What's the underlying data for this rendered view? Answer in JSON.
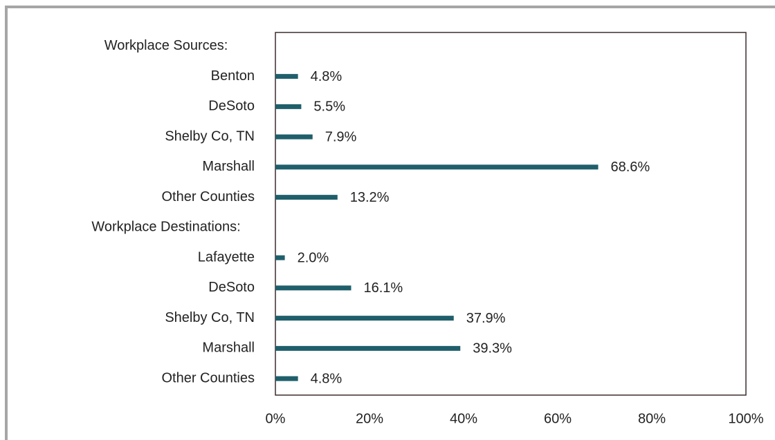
{
  "chart_data": {
    "type": "bar",
    "orientation": "horizontal",
    "categories": [
      "Workplace Sources:",
      "Benton",
      "DeSoto",
      "Shelby Co, TN",
      "Marshall",
      "Other Counties",
      "Workplace Destinations:",
      "Lafayette",
      "DeSoto",
      "Shelby Co, TN",
      "Marshall",
      "Other Counties"
    ],
    "values": [
      null,
      4.8,
      5.5,
      7.9,
      68.6,
      13.2,
      null,
      2.0,
      16.1,
      37.9,
      39.3,
      4.8
    ],
    "value_labels": [
      null,
      "4.8%",
      "5.5%",
      "7.9%",
      "68.6%",
      "13.2%",
      null,
      "2.0%",
      "16.1%",
      "37.9%",
      "39.3%",
      "4.8%"
    ],
    "color": "#1f5f6b",
    "xlim": [
      0,
      100
    ],
    "xticks": [
      {
        "value": 0,
        "label": "0%"
      },
      {
        "value": 20,
        "label": "20%"
      },
      {
        "value": 40,
        "label": "40%"
      },
      {
        "value": 60,
        "label": "60%"
      },
      {
        "value": 80,
        "label": "80%"
      },
      {
        "value": 100,
        "label": "100%"
      }
    ],
    "grid": false
  }
}
